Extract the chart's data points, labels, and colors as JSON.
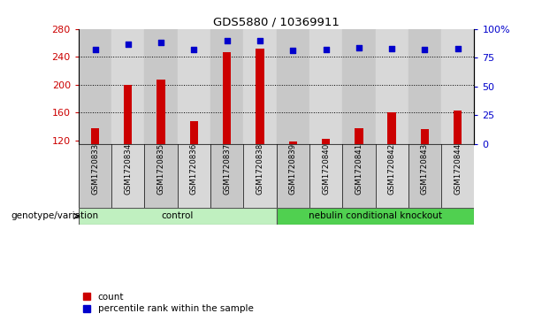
{
  "title": "GDS5880 / 10369911",
  "samples": [
    "GSM1720833",
    "GSM1720834",
    "GSM1720835",
    "GSM1720836",
    "GSM1720837",
    "GSM1720838",
    "GSM1720839",
    "GSM1720840",
    "GSM1720841",
    "GSM1720842",
    "GSM1720843",
    "GSM1720844"
  ],
  "counts": [
    138,
    200,
    207,
    148,
    247,
    252,
    119,
    122,
    138,
    161,
    137,
    163
  ],
  "percentiles": [
    82,
    87,
    88,
    82,
    90,
    90,
    81,
    82,
    84,
    83,
    82,
    83
  ],
  "ylim_left": [
    115,
    280
  ],
  "ylim_right": [
    0,
    100
  ],
  "yticks_left": [
    120,
    160,
    200,
    240,
    280
  ],
  "yticks_right": [
    0,
    25,
    50,
    75,
    100
  ],
  "yticklabels_right": [
    "0",
    "25",
    "50",
    "75",
    "100%"
  ],
  "groups": [
    {
      "label": "control",
      "start": 0,
      "end": 5,
      "color": "#c0f0c0"
    },
    {
      "label": "nebulin conditional knockout",
      "start": 6,
      "end": 11,
      "color": "#50d050"
    }
  ],
  "group_row_label": "genotype/variation",
  "bar_color": "#cc0000",
  "dot_color": "#0000cc",
  "grid_color": "#000000",
  "bg_color": "#ffffff",
  "tick_color_left": "#cc0000",
  "tick_color_right": "#0000cc",
  "col_colors": [
    "#c8c8c8",
    "#d8d8d8"
  ],
  "legend_items": [
    {
      "label": "count",
      "color": "#cc0000"
    },
    {
      "label": "percentile rank within the sample",
      "color": "#0000cc"
    }
  ],
  "bar_width": 0.25,
  "dot_size": 25,
  "gridline_ticks": [
    160,
    200,
    240
  ],
  "base_value": 115
}
